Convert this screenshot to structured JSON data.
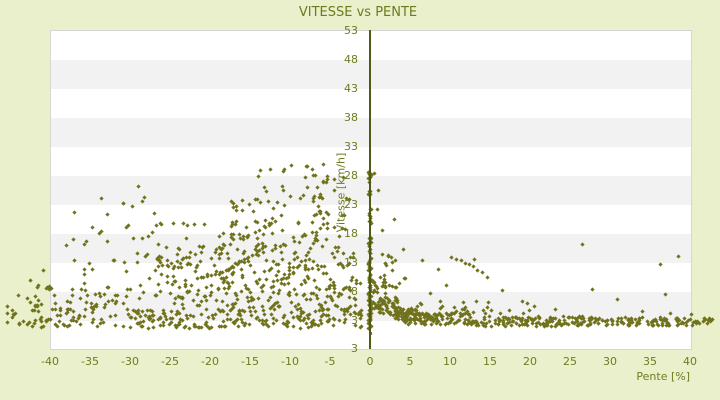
{
  "chart_data": {
    "type": "scatter",
    "title": "VITESSE vs PENTE",
    "xlabel": "Pente [%]",
    "ylabel": "Vitesse [km/h]",
    "xlim": [
      -40,
      40
    ],
    "ylim": [
      -2,
      53
    ],
    "grid": "alternating horizontal bands every 5 units",
    "legend": "none",
    "xticks": [
      -40,
      -35,
      -30,
      -25,
      -20,
      -15,
      -10,
      -5,
      0,
      5,
      10,
      15,
      20,
      25,
      30,
      35,
      40
    ],
    "yticks": [
      53,
      48,
      43,
      38,
      33,
      28,
      23,
      18,
      13,
      8,
      3
    ],
    "y_end_label": "3",
    "colors": {
      "background": "#eaefcc",
      "text": "#6f7c1f",
      "points": "#70721c",
      "axis": "#4e5a16",
      "marker": "#4a6fae",
      "band_light": "#ffffff",
      "band_dark": "#f2f2f2"
    },
    "series": [
      {
        "name": "vitesse-vs-pente-points",
        "color": "#70721c",
        "clusters": [
          {
            "x": [
              -45.5,
              -30
            ],
            "y": [
              1.8,
              5
            ],
            "n": 70
          },
          {
            "x": [
              -30,
              -15
            ],
            "y": [
              1.6,
              5
            ],
            "n": 115
          },
          {
            "x": [
              -15,
              -0.7
            ],
            "y": [
              1.6,
              5
            ],
            "n": 95
          },
          {
            "x": [
              -43,
              -25
            ],
            "y": [
              5,
              9
            ],
            "n": 55
          },
          {
            "x": [
              -25,
              -10
            ],
            "y": [
              5,
              10
            ],
            "n": 95
          },
          {
            "x": [
              -10,
              -1
            ],
            "y": [
              5,
              10
            ],
            "n": 60
          },
          {
            "x": [
              -36,
              -22
            ],
            "y": [
              9,
              14
            ],
            "n": 38
          },
          {
            "x": [
              -22,
              -8
            ],
            "y": [
              10,
              16
            ],
            "n": 75
          },
          {
            "x": [
              -8,
              -1
            ],
            "y": [
              10,
              17
            ],
            "n": 32
          },
          {
            "x": [
              -28,
              -15
            ],
            "y": [
              14,
              20
            ],
            "n": 32
          },
          {
            "x": [
              -18,
              -6
            ],
            "y": [
              16,
              24
            ],
            "n": 48
          },
          {
            "x": [
              -14,
              -4
            ],
            "y": [
              24,
              29.5
            ],
            "n": 26
          },
          {
            "x": [
              -7,
              -2
            ],
            "y": [
              17,
              26
            ],
            "n": 18
          },
          {
            "x": [
              -38,
              -26
            ],
            "y": [
              14,
              22
            ],
            "n": 14
          },
          {
            "x": [
              -34,
              -27
            ],
            "y": [
              22,
              26
            ],
            "n": 5
          },
          {
            "x": [
              -0.2,
              0.2
            ],
            "y": [
              1.5,
              10
            ],
            "n": 48
          },
          {
            "x": [
              -0.2,
              0.2
            ],
            "y": [
              10,
              17.5
            ],
            "n": 30
          },
          {
            "x": [
              -0.2,
              0.2
            ],
            "y": [
              19.5,
              22.5
            ],
            "n": 10
          },
          {
            "x": [
              -0.2,
              0.2
            ],
            "y": [
              24.5,
              28.5
            ],
            "n": 12
          },
          {
            "x": [
              0.3,
              2
            ],
            "y": [
              5,
              10
            ],
            "n": 32
          },
          {
            "x": [
              1,
              3.5
            ],
            "y": [
              4,
              7
            ],
            "n": 45
          },
          {
            "x": [
              2.5,
              6
            ],
            "y": [
              3,
              5.5
            ],
            "n": 55
          },
          {
            "x": [
              4,
              12
            ],
            "y": [
              2.2,
              4.2
            ],
            "n": 90
          },
          {
            "x": [
              12,
              28
            ],
            "y": [
              1.9,
              3.6
            ],
            "n": 150
          },
          {
            "x": [
              28,
              40.5
            ],
            "y": [
              2,
              3.4
            ],
            "n": 95
          },
          {
            "x": [
              40.5,
              42.8
            ],
            "y": [
              2.3,
              3.4
            ],
            "n": 14
          },
          {
            "x": [
              5,
              20
            ],
            "y": [
              3.8,
              6.3
            ],
            "n": 30
          },
          {
            "x": [
              1,
              5
            ],
            "y": [
              8,
              16
            ],
            "n": 16
          }
        ],
        "streaks": [
          [
            26,
            -21.5,
            10.3,
            -13.0,
            15.8,
            -0.9
          ],
          [
            22,
            -11.4,
            9.8,
            -5.4,
            21.5,
            -2.5
          ],
          [
            10,
            -26.5,
            12.2,
            -21.2,
            14.8,
            -0.4
          ],
          [
            10,
            -17.0,
            16.8,
            -11.2,
            20.8,
            -0.6
          ],
          [
            9,
            10.3,
            13.6,
            14.6,
            10.4,
            0.5
          ]
        ],
        "points": [
          [
            0.6,
            28.2
          ],
          [
            1.1,
            25.4
          ],
          [
            0.9,
            22.1
          ],
          [
            1.6,
            18.4
          ],
          [
            2.3,
            14.2
          ],
          [
            3.1,
            20.3
          ],
          [
            4.2,
            15.2
          ],
          [
            26.6,
            16.0
          ],
          [
            36.3,
            12.5
          ],
          [
            38.6,
            14.0
          ],
          [
            27.8,
            8.3
          ],
          [
            30.9,
            6.6
          ],
          [
            36.9,
            7.4
          ],
          [
            20.6,
            5.4
          ],
          [
            23.2,
            4.8
          ],
          [
            34.1,
            4.5
          ],
          [
            37.6,
            4.1
          ],
          [
            40.2,
            4.0
          ],
          [
            13.1,
            13.4
          ],
          [
            6.6,
            13.2
          ],
          [
            8.6,
            11.8
          ],
          [
            9.6,
            9.0
          ],
          [
            7.6,
            7.5
          ],
          [
            16.6,
            8.1
          ],
          [
            19.1,
            6.2
          ],
          [
            11.9,
            5.1
          ],
          [
            15.2,
            4.6
          ],
          [
            2.8,
            11.5
          ],
          [
            1.9,
            12.8
          ],
          [
            -32.8,
            21.2
          ],
          [
            -30.5,
            19.0
          ],
          [
            -28.2,
            24.2
          ],
          [
            -37.0,
            13.2
          ],
          [
            -40.8,
            11.5
          ],
          [
            -42.5,
            9.8
          ],
          [
            -35.5,
            16.5
          ],
          [
            -29.0,
            26.0
          ],
          [
            -9.8,
            29.6
          ],
          [
            -7.2,
            28.9
          ],
          [
            -5.8,
            29.8
          ],
          [
            -12.5,
            29.0
          ],
          [
            -3.3,
            27.5
          ],
          [
            -2.6,
            23.8
          ],
          [
            -44.0,
            7.2
          ],
          [
            -45.3,
            5.4
          ],
          [
            -41.2,
            3.1
          ],
          [
            -43.8,
            2.4
          ]
        ]
      },
      {
        "name": "current-position-marker",
        "color": "#4a6fae",
        "shape": "square",
        "points": [
          [
            0,
            0.6
          ]
        ]
      }
    ]
  }
}
